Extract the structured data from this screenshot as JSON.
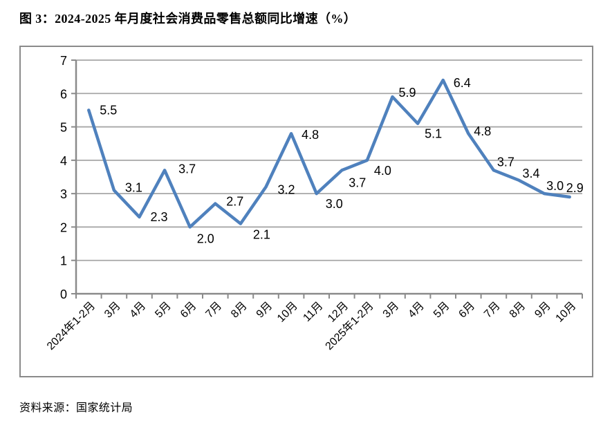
{
  "title": "图 3：2024-2025 年月度社会消费品零售总额同比增速（%）",
  "source": "资料来源：国家统计局",
  "chart_data": {
    "type": "line",
    "title": "2024-2025 年月度社会消费品零售总额同比增速（%）",
    "categories": [
      "2024年1-2月",
      "3月",
      "4月",
      "5月",
      "6月",
      "7月",
      "8月",
      "9月",
      "10月",
      "11月",
      "12月",
      "2025年1-2月",
      "3月",
      "4月",
      "5月",
      "6月",
      "7月",
      "8月",
      "9月",
      "10月"
    ],
    "values": [
      5.5,
      3.1,
      2.3,
      3.7,
      2.0,
      2.7,
      2.1,
      3.2,
      4.8,
      3.0,
      3.7,
      4.0,
      5.9,
      5.1,
      6.4,
      4.8,
      3.7,
      3.4,
      3.0,
      2.9
    ],
    "xlabel": "",
    "ylabel": "",
    "ylim": [
      0,
      7
    ],
    "ytick_step": 1,
    "yticks": [
      0,
      1,
      2,
      3,
      4,
      5,
      6,
      7
    ],
    "grid": true,
    "legend": false,
    "data_labels": true,
    "line_color": "#4F81BD",
    "gridline_color": "#A6A6A6",
    "axis_color": "#8a8a8a",
    "label_color": "#000000"
  }
}
